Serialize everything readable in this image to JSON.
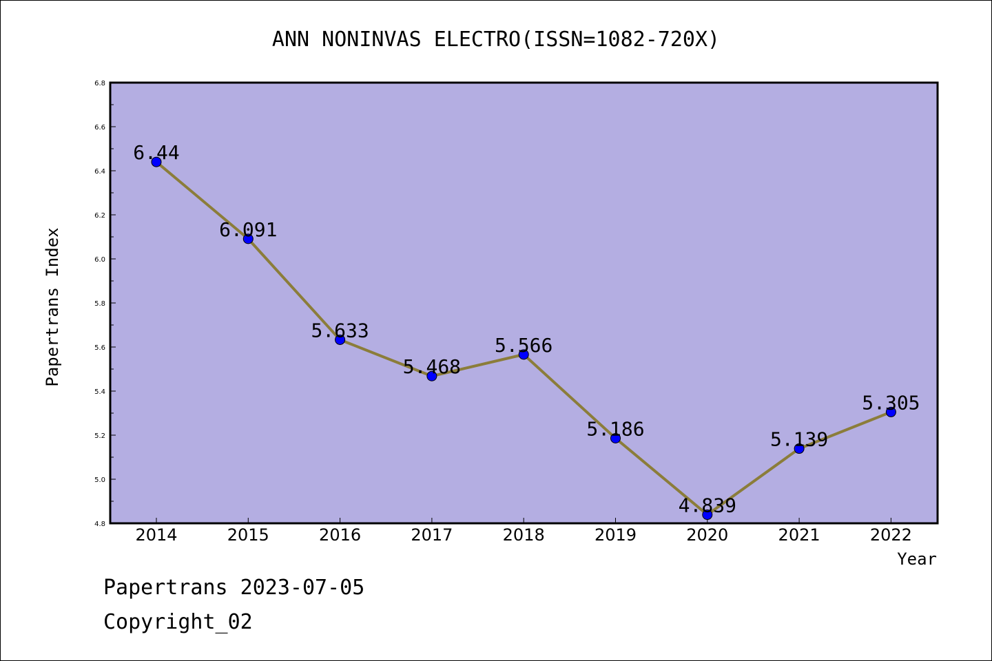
{
  "chart_data": {
    "type": "line",
    "title": "ANN NONINVAS ELECTRO(ISSN=1082-720X)",
    "xlabel": "Year",
    "ylabel": "Papertrans Index",
    "categories": [
      "2014",
      "2015",
      "2016",
      "2017",
      "2018",
      "2019",
      "2020",
      "2021",
      "2022"
    ],
    "series": [
      {
        "values": [
          6.44,
          6.091,
          5.633,
          5.468,
          5.566,
          5.186,
          4.839,
          5.139,
          5.305
        ],
        "labels": [
          "6.44",
          "6.091",
          "5.633",
          "5.468",
          "5.566",
          "5.186",
          "4.839",
          "5.139",
          "5.305"
        ]
      }
    ],
    "ylim": [
      4.8,
      6.8
    ],
    "yticks": [
      "4.8",
      "5.0",
      "5.2",
      "5.4",
      "5.6",
      "5.8",
      "6.0",
      "6.2",
      "6.4",
      "6.6",
      "6.8"
    ],
    "grid": false,
    "colors": {
      "plot_background": "#b4aee2",
      "line": "#8b7d3a",
      "marker": "#0000ff"
    }
  },
  "footer": {
    "line1": "Papertrans 2023-07-05",
    "line2": "Copyright_02"
  }
}
